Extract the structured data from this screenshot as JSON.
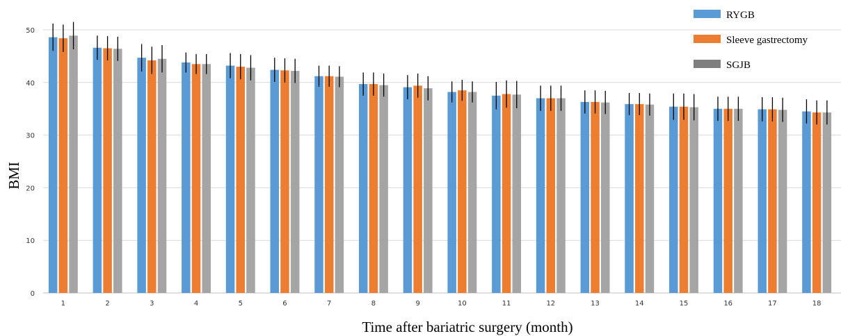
{
  "chart_data": {
    "type": "bar",
    "xlabel": "Time after bariatric surgery (month)",
    "ylabel": "BMI",
    "ylim": [
      0,
      50
    ],
    "yticks": [
      0,
      10,
      20,
      30,
      40,
      50
    ],
    "grid": true,
    "legend_position": "top-right",
    "categories": [
      "1",
      "2",
      "3",
      "4",
      "5",
      "6",
      "7",
      "8",
      "9",
      "10",
      "11",
      "12",
      "13",
      "14",
      "15",
      "16",
      "17",
      "18"
    ],
    "series": [
      {
        "name": "RYGB",
        "color": "#5b9bd5",
        "values": [
          48.6,
          46.6,
          44.7,
          43.8,
          43.2,
          42.4,
          41.2,
          39.7,
          39.1,
          38.2,
          37.5,
          37.0,
          36.3,
          35.9,
          35.4,
          35.0,
          34.9,
          34.5
        ],
        "errors": [
          2.6,
          2.3,
          2.6,
          1.9,
          2.4,
          2.3,
          2.0,
          2.2,
          2.3,
          2.0,
          2.6,
          2.4,
          2.2,
          2.1,
          2.5,
          2.3,
          2.3,
          2.3
        ]
      },
      {
        "name": "Sleeve gastrectomy",
        "color": "#ed7d31",
        "values": [
          48.4,
          46.5,
          44.2,
          43.5,
          43.0,
          42.3,
          41.2,
          39.7,
          39.4,
          38.5,
          37.8,
          37.0,
          36.3,
          35.9,
          35.4,
          35.0,
          34.9,
          34.3
        ]
      },
      {
        "name": "SGJB",
        "color": "#a5a5a5",
        "legend_color": "#7f7f7f",
        "values": [
          48.9,
          46.4,
          44.5,
          43.5,
          42.8,
          42.2,
          41.1,
          39.5,
          38.9,
          38.2,
          37.7,
          37.0,
          36.2,
          35.8,
          35.3,
          35.0,
          34.8,
          34.3
        ]
      }
    ]
  }
}
